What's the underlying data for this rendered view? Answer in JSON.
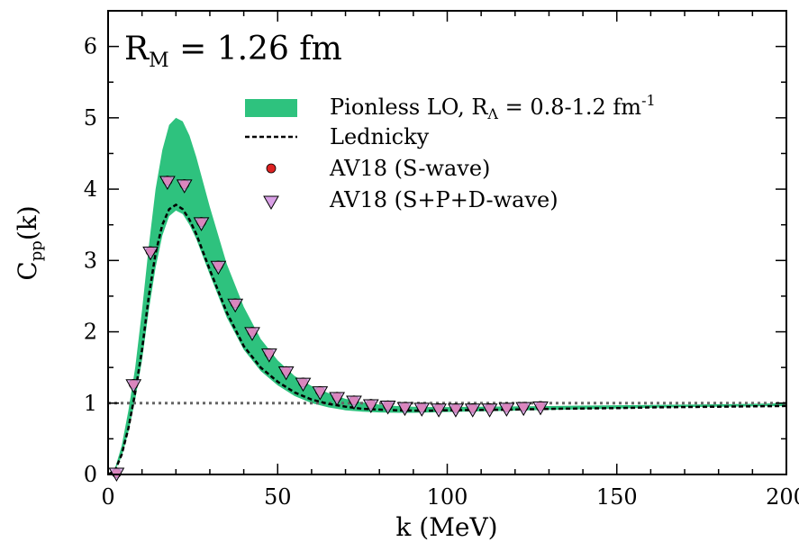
{
  "chart_data": {
    "type": "line",
    "annotation": {
      "main": "R",
      "sub": "M",
      "rest": " = 1.26 fm"
    },
    "xlabel": "k (MeV)",
    "ylabel": {
      "main": "C",
      "sub": "pp",
      "rest": "(k)"
    },
    "xlim": [
      0,
      200
    ],
    "ylim": [
      0,
      6.5
    ],
    "xticks": [
      0,
      50,
      100,
      150,
      200
    ],
    "yticks": [
      0,
      1,
      2,
      3,
      4,
      5,
      6
    ],
    "grid": false,
    "legend_position": "top-right",
    "reference_line": {
      "y": 1,
      "style": "dotted",
      "color": "#666666"
    },
    "band": {
      "name_parts": {
        "main": "Pionless LO, R",
        "sub": "Λ",
        "mid": " = 0.8-1.2 fm",
        "sup": "-1"
      },
      "color": "#2ec27e",
      "x": [
        0,
        2,
        4,
        6,
        8,
        10,
        12,
        14,
        16,
        18,
        20,
        22,
        24,
        26,
        28,
        30,
        35,
        40,
        45,
        50,
        55,
        60,
        65,
        70,
        75,
        80,
        85,
        90,
        95,
        100,
        110,
        120,
        130,
        140,
        150,
        160,
        170,
        180,
        190,
        200
      ],
      "upper": [
        0,
        0.08,
        0.4,
        0.9,
        1.5,
        2.3,
        3.2,
        4.0,
        4.55,
        4.9,
        5.0,
        4.95,
        4.75,
        4.45,
        4.1,
        3.75,
        2.95,
        2.35,
        1.9,
        1.6,
        1.38,
        1.24,
        1.14,
        1.06,
        1.01,
        0.98,
        0.96,
        0.95,
        0.945,
        0.945,
        0.95,
        0.955,
        0.96,
        0.965,
        0.97,
        0.975,
        0.98,
        0.985,
        0.99,
        1.0
      ],
      "lower": [
        0,
        0.05,
        0.25,
        0.6,
        1.05,
        1.6,
        2.3,
        2.9,
        3.35,
        3.62,
        3.7,
        3.65,
        3.5,
        3.3,
        3.05,
        2.8,
        2.2,
        1.75,
        1.45,
        1.25,
        1.1,
        1.0,
        0.94,
        0.9,
        0.88,
        0.87,
        0.865,
        0.865,
        0.87,
        0.875,
        0.885,
        0.895,
        0.905,
        0.915,
        0.925,
        0.935,
        0.945,
        0.95,
        0.955,
        0.96
      ]
    },
    "series": [
      {
        "name": "Lednicky",
        "style": "dashed",
        "color": "#000000",
        "x": [
          0,
          2,
          4,
          6,
          8,
          10,
          12,
          14,
          16,
          18,
          20,
          22,
          24,
          26,
          28,
          30,
          35,
          40,
          45,
          50,
          55,
          60,
          65,
          70,
          75,
          80,
          85,
          90,
          95,
          100,
          110,
          120,
          130,
          140,
          150,
          160,
          170,
          180,
          190,
          200
        ],
        "y": [
          0,
          0.05,
          0.28,
          0.65,
          1.15,
          1.75,
          2.5,
          3.1,
          3.5,
          3.72,
          3.78,
          3.72,
          3.57,
          3.37,
          3.12,
          2.87,
          2.27,
          1.8,
          1.5,
          1.3,
          1.15,
          1.05,
          0.99,
          0.95,
          0.92,
          0.91,
          0.9,
          0.895,
          0.895,
          0.9,
          0.905,
          0.91,
          0.92,
          0.925,
          0.93,
          0.94,
          0.945,
          0.95,
          0.955,
          0.96
        ]
      },
      {
        "name": "AV18 (S-wave)",
        "marker": "circle",
        "color": "#dd2222",
        "x": [
          2.5,
          7.5,
          12.5,
          17.5,
          22.5,
          27.5,
          32.5,
          37.5,
          42.5,
          47.5,
          52.5,
          57.5,
          62.5,
          67.5,
          72.5,
          77.5,
          82.5,
          87.5,
          92.5,
          97.5,
          102.5,
          107.5,
          112.5,
          117.5,
          122.5,
          127.5
        ],
        "y": [
          0.02,
          1.27,
          3.13,
          4.12,
          4.07,
          3.54,
          2.93,
          2.4,
          2.0,
          1.7,
          1.45,
          1.29,
          1.17,
          1.09,
          1.04,
          0.99,
          0.97,
          0.95,
          0.94,
          0.93,
          0.93,
          0.93,
          0.93,
          0.94,
          0.95,
          0.96
        ]
      },
      {
        "name": "AV18 (S+P+D-wave)",
        "marker": "triangle-down",
        "color": "#d9a0e6",
        "x": [
          2.5,
          7.5,
          12.5,
          17.5,
          22.5,
          27.5,
          32.5,
          37.5,
          42.5,
          47.5,
          52.5,
          57.5,
          62.5,
          67.5,
          72.5,
          77.5,
          82.5,
          87.5,
          92.5,
          97.5,
          102.5,
          107.5,
          112.5,
          117.5,
          122.5,
          127.5
        ],
        "y": [
          0.0,
          1.24,
          3.1,
          4.09,
          4.04,
          3.51,
          2.9,
          2.37,
          1.97,
          1.67,
          1.42,
          1.26,
          1.14,
          1.06,
          1.01,
          0.96,
          0.94,
          0.92,
          0.91,
          0.9,
          0.9,
          0.9,
          0.9,
          0.91,
          0.92,
          0.93
        ]
      }
    ]
  }
}
